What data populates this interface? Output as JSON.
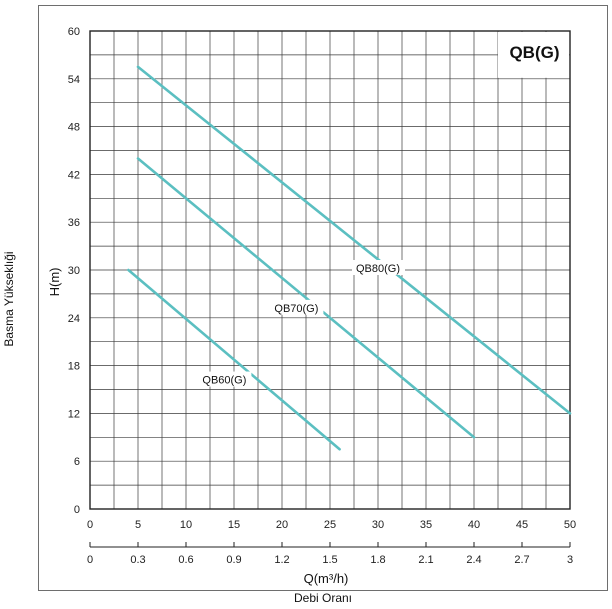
{
  "outer_labels": {
    "left": "Basma Yükseklıği",
    "bottom": "Debi Oranı"
  },
  "chart_data": {
    "type": "line",
    "title": "QB(G)",
    "ylabel": "H(m)",
    "xlabel": "Q(m³/h)",
    "ylim": [
      0,
      60
    ],
    "xlim": [
      0,
      50
    ],
    "y_ticks": [
      "0",
      "6",
      "12",
      "18",
      "24",
      "30",
      "36",
      "42",
      "48",
      "54",
      "60"
    ],
    "x_ticks_top": [
      "0",
      "5",
      "10",
      "15",
      "20",
      "25",
      "30",
      "35",
      "40",
      "45",
      "50"
    ],
    "x_ticks_bottom": [
      "0",
      "0.3",
      "0.6",
      "0.9",
      "1.2",
      "1.5",
      "1.8",
      "2.1",
      "2.4",
      "2.7",
      "3"
    ],
    "grid": true,
    "line_color": "#5bbfc1",
    "series": [
      {
        "name": "QB60(G)",
        "x": [
          4.0,
          26.0
        ],
        "y": [
          30,
          7.5
        ],
        "label_at": [
          14,
          16
        ]
      },
      {
        "name": "QB70(G)",
        "x": [
          5.0,
          40.0
        ],
        "y": [
          44,
          9
        ],
        "label_at": [
          21.5,
          25
        ]
      },
      {
        "name": "QB80(G)",
        "x": [
          5.0,
          50.0
        ],
        "y": [
          55.5,
          12
        ],
        "label_at": [
          30,
          30
        ]
      }
    ]
  }
}
